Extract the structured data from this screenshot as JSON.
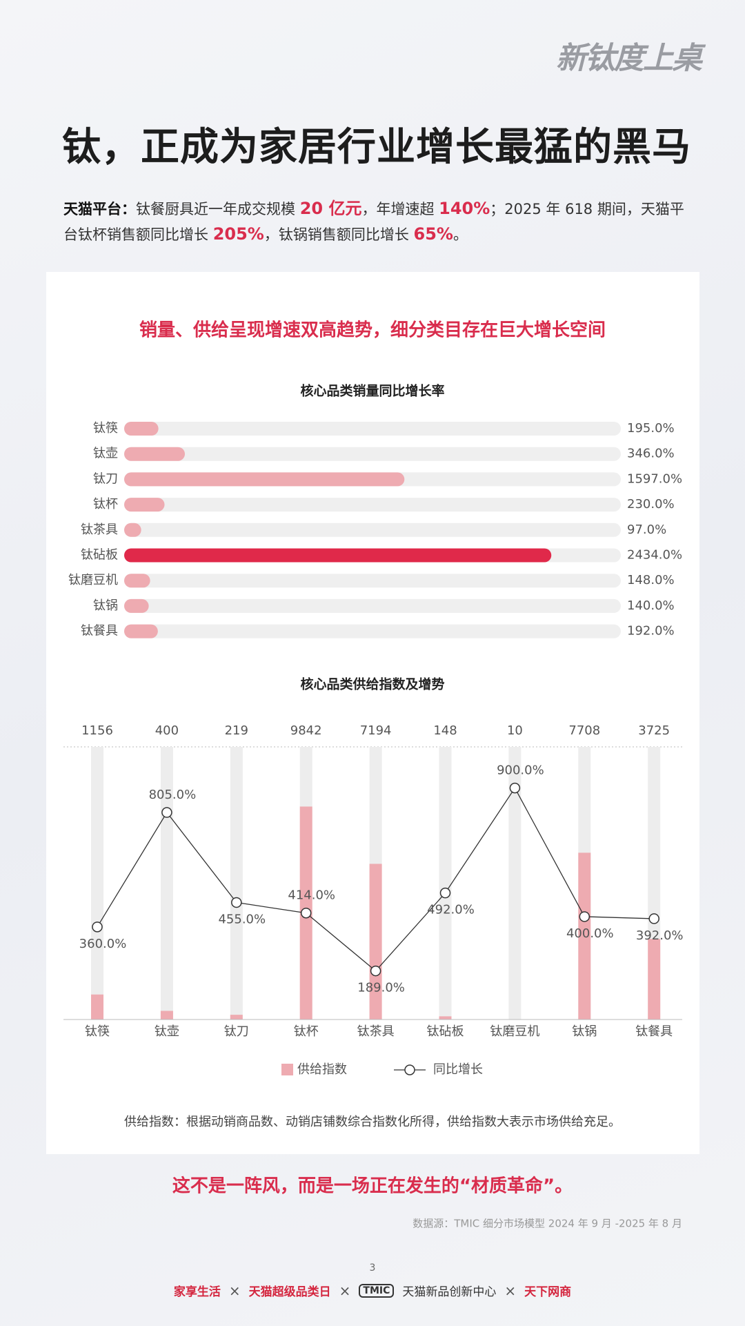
{
  "brand": "新钛度上桌",
  "title": "钛，正成为家居行业增长最猛的黑马",
  "intro": [
    {
      "text": "天猫平台：",
      "style": "bold"
    },
    {
      "text": "钛餐厨具近一年成交规模 ",
      "style": "plain"
    },
    {
      "text": "20 亿元",
      "style": "highlight"
    },
    {
      "text": "，年增速超 ",
      "style": "plain"
    },
    {
      "text": "140%",
      "style": "highlight"
    },
    {
      "text": "；2025 年 618 期间，天猫平台钛杯销售额同比增长 ",
      "style": "plain"
    },
    {
      "text": "205%",
      "style": "highlight"
    },
    {
      "text": "，钛锅销售额同比增长 ",
      "style": "plain"
    },
    {
      "text": "65%",
      "style": "highlight"
    },
    {
      "text": "。",
      "style": "plain"
    }
  ],
  "section_heading": "销量、供给呈现增速双高趋势，细分类目存在巨大增长空间",
  "chart_data": [
    {
      "type": "bar",
      "orientation": "horizontal",
      "title": "核心品类销量同比增长率",
      "categories": [
        "钛筷",
        "钛壶",
        "钛刀",
        "钛杯",
        "钛茶具",
        "钛砧板",
        "钛磨豆机",
        "钛锅",
        "钛餐具"
      ],
      "values": [
        195,
        346,
        1597,
        230,
        97,
        2434,
        148,
        140,
        192
      ],
      "value_labels": [
        "195.0%",
        "346.0%",
        "1597.0%",
        "230.0%",
        "97.0%",
        "2434.0%",
        "148.0%",
        "140.0%",
        "192.0%"
      ],
      "colors": [
        "#eeabb1",
        "#eeabb1",
        "#eeabb1",
        "#eeabb1",
        "#eeabb1",
        "#e0294a",
        "#eeabb1",
        "#eeabb1",
        "#eeabb1"
      ],
      "track_color": "#efefef",
      "xlim": [
        0,
        2830
      ]
    },
    {
      "type": "combo",
      "title": "核心品类供给指数及增势",
      "categories": [
        "钛筷",
        "钛壶",
        "钛刀",
        "钛杯",
        "钛茶具",
        "钛砧板",
        "钛磨豆机",
        "钛锅",
        "钛餐具"
      ],
      "series": [
        {
          "name": "供给指数",
          "type": "bar",
          "color": "#eeabb1",
          "values": [
            1156,
            400,
            219,
            9842,
            7194,
            148,
            10,
            7708,
            3725
          ]
        },
        {
          "name": "同比增长",
          "type": "line",
          "axis": "y2",
          "color": "#333333",
          "values": [
            360,
            805,
            455,
            414,
            189,
            492,
            900,
            400,
            392
          ],
          "value_labels": [
            "360.0%",
            "805.0%",
            "455.0%",
            "414.0%",
            "189.0%",
            "492.0%",
            "900.0%",
            "400.0%",
            "392.0%"
          ]
        }
      ],
      "track_color": "#ededed",
      "ylim": [
        0,
        12600
      ],
      "y2lim": [
        0,
        1060
      ],
      "legend": "bottom"
    }
  ],
  "footnote": "供给指数：根据动销商品数、动销店铺数综合指数化所得，供给指数大表示市场供给充足。",
  "closing": "这不是一阵风，而是一场正在发生的“材质革命”。",
  "source": "数据源：TMIC 细分市场模型 2024 年 9 月 -2025 年 8 月",
  "page_number": "3",
  "footer": {
    "separator": "×",
    "partners": [
      "家享生活",
      "天猫超级品类日",
      "TMIC",
      "天猫新品创新中心",
      "天下网商"
    ]
  }
}
